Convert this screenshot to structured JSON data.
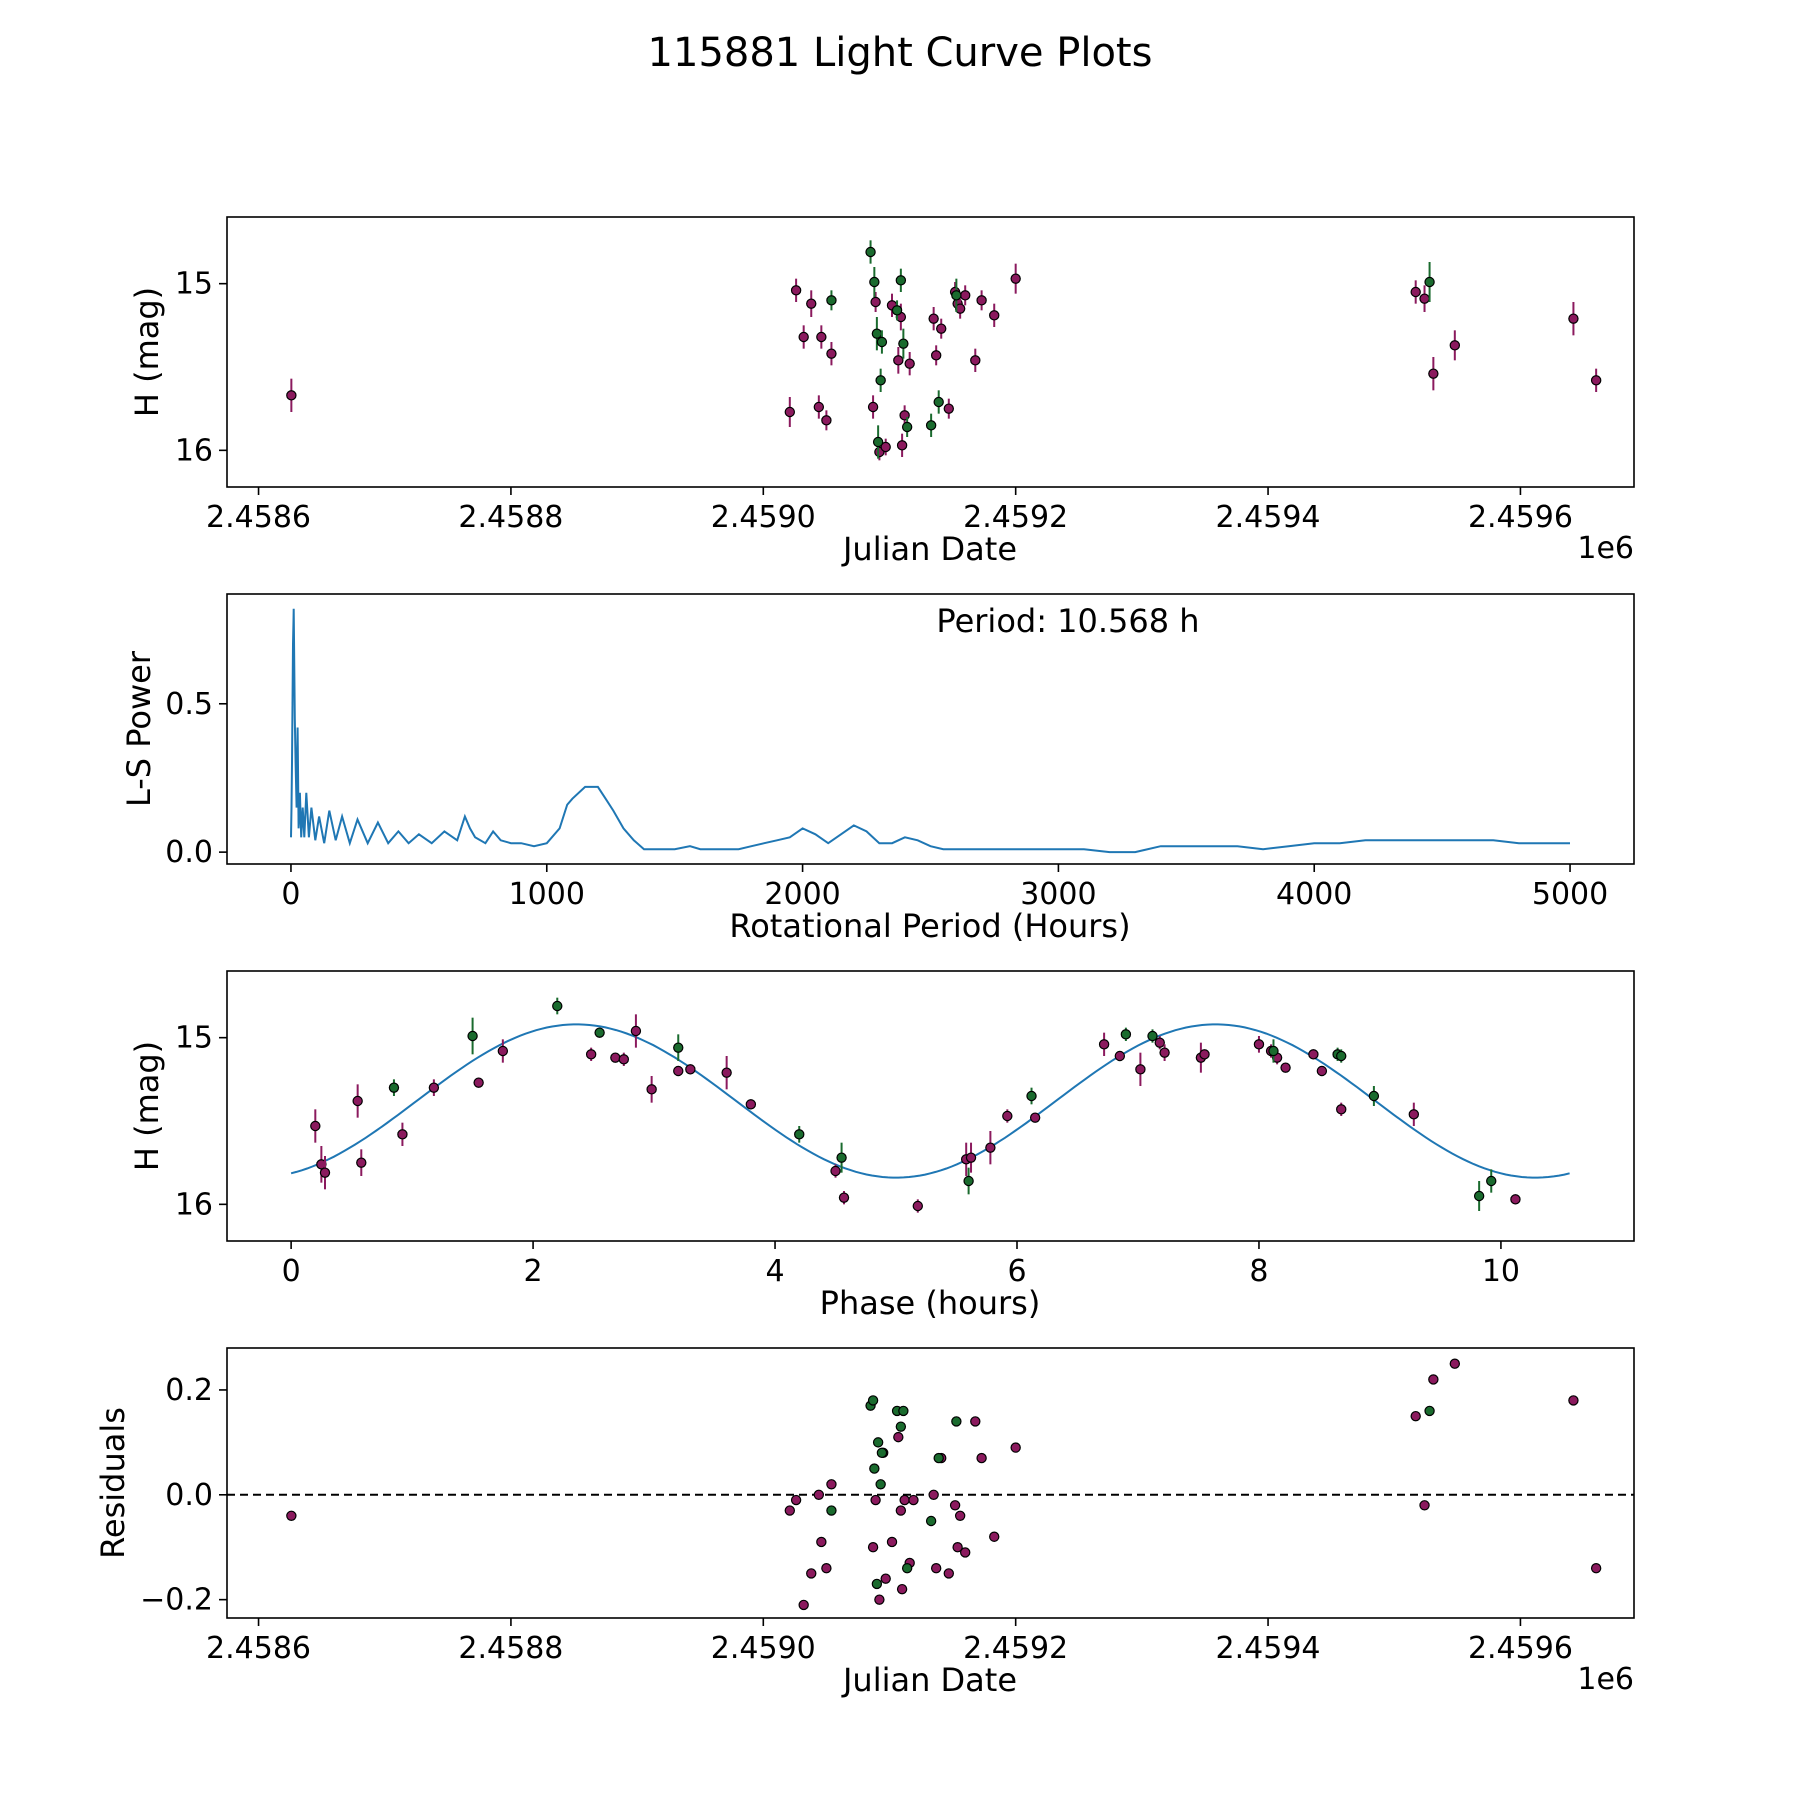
{
  "figure": {
    "title": "115881 Light Curve Plots"
  },
  "colors": {
    "series_a": "#8b1a5e",
    "series_b": "#1a6b2e",
    "marker_edge": "#000000",
    "curve": "#1f77b4",
    "zero_line": "#000000"
  },
  "chart_data": [
    {
      "name": "light-curve",
      "type": "scatter",
      "xlabel": "Julian Date",
      "ylabel": "H (mag)",
      "offset_label": "1e6",
      "xlim": [
        2458575,
        2459690
      ],
      "ylim": [
        14.6,
        16.22
      ],
      "inverted_y": true,
      "xticks": [
        2458600,
        2458800,
        2459000,
        2459200,
        2459400,
        2459600
      ],
      "xtick_labels": [
        "2.4586",
        "2.4588",
        "2.4590",
        "2.4592",
        "2.4594",
        "2.4596"
      ],
      "yticks": [
        15,
        16
      ],
      "ytick_labels": [
        "15",
        "16"
      ],
      "series": [
        {
          "name": "band-a",
          "color_key": "series_a",
          "x": [
            2458626,
            2459021,
            2459026,
            2459032,
            2459038,
            2459044,
            2459046,
            2459050,
            2459054,
            2459087,
            2459089,
            2459092,
            2459097,
            2459102,
            2459107,
            2459109,
            2459110,
            2459112,
            2459116,
            2459135,
            2459137,
            2459141,
            2459147,
            2459152,
            2459154,
            2459156,
            2459160,
            2459168,
            2459173,
            2459183,
            2459200,
            2459517,
            2459524,
            2459531,
            2459548,
            2459642,
            2459660
          ],
          "y": [
            15.67,
            15.77,
            15.04,
            15.32,
            15.12,
            15.74,
            15.32,
            15.82,
            15.42,
            15.74,
            15.11,
            16.01,
            15.98,
            15.13,
            15.46,
            15.2,
            15.97,
            15.79,
            15.48,
            15.21,
            15.43,
            15.27,
            15.75,
            15.05,
            15.12,
            15.15,
            15.07,
            15.46,
            15.1,
            15.19,
            14.97,
            15.05,
            15.09,
            15.54,
            15.37,
            15.21,
            15.58
          ],
          "err": [
            0.2,
            0.18,
            0.14,
            0.14,
            0.16,
            0.14,
            0.14,
            0.12,
            0.14,
            0.14,
            0.12,
            0.1,
            0.1,
            0.14,
            0.16,
            0.16,
            0.14,
            0.12,
            0.14,
            0.14,
            0.12,
            0.12,
            0.12,
            0.12,
            0.1,
            0.12,
            0.12,
            0.14,
            0.12,
            0.14,
            0.18,
            0.14,
            0.16,
            0.2,
            0.18,
            0.2,
            0.14
          ]
        },
        {
          "name": "band-b",
          "color_key": "series_b",
          "x": [
            2459054,
            2459085,
            2459088,
            2459090,
            2459091,
            2459093,
            2459094,
            2459106,
            2459109,
            2459111,
            2459114,
            2459133,
            2459139,
            2459153,
            2459528
          ],
          "y": [
            15.1,
            14.81,
            14.99,
            15.3,
            15.95,
            15.58,
            15.35,
            15.16,
            14.98,
            15.36,
            15.86,
            15.85,
            15.71,
            15.07,
            14.99
          ],
          "err": [
            0.12,
            0.14,
            0.18,
            0.2,
            0.2,
            0.14,
            0.14,
            0.12,
            0.14,
            0.18,
            0.12,
            0.14,
            0.14,
            0.2,
            0.24
          ]
        }
      ]
    },
    {
      "name": "periodogram",
      "type": "line",
      "xlabel": "Rotational Period (Hours)",
      "ylabel": "L-S Power",
      "annotation": "Period: 10.568 h",
      "xlim": [
        -250,
        5250
      ],
      "ylim": [
        -0.04,
        0.87
      ],
      "xticks": [
        0,
        1000,
        2000,
        3000,
        4000,
        5000
      ],
      "xtick_labels": [
        "0",
        "1000",
        "2000",
        "3000",
        "4000",
        "5000"
      ],
      "yticks": [
        0.0,
        0.5
      ],
      "ytick_labels": [
        "0.0",
        "0.5"
      ],
      "peak_period": 10.568,
      "x": [
        0,
        2,
        4,
        6,
        8,
        10,
        10.568,
        12,
        15,
        18,
        22,
        26,
        30,
        35,
        40,
        46,
        52,
        60,
        70,
        80,
        95,
        110,
        130,
        150,
        175,
        200,
        230,
        260,
        300,
        340,
        380,
        420,
        460,
        500,
        550,
        600,
        650,
        680,
        700,
        720,
        760,
        790,
        820,
        860,
        900,
        950,
        1000,
        1050,
        1080,
        1100,
        1150,
        1200,
        1230,
        1260,
        1300,
        1340,
        1380,
        1430,
        1500,
        1560,
        1600,
        1680,
        1750,
        1800,
        1850,
        1900,
        1950,
        2000,
        2050,
        2100,
        2150,
        2200,
        2250,
        2300,
        2350,
        2400,
        2450,
        2500,
        2550,
        2600,
        2700,
        2800,
        2900,
        3000,
        3100,
        3200,
        3300,
        3400,
        3500,
        3600,
        3700,
        3800,
        3900,
        4000,
        4100,
        4200,
        4300,
        4400,
        4500,
        4600,
        4700,
        4800,
        4900,
        5000
      ],
      "y": [
        0.05,
        0.15,
        0.3,
        0.5,
        0.7,
        0.78,
        0.82,
        0.72,
        0.45,
        0.3,
        0.15,
        0.42,
        0.08,
        0.2,
        0.05,
        0.15,
        0.05,
        0.2,
        0.05,
        0.15,
        0.04,
        0.12,
        0.03,
        0.14,
        0.04,
        0.12,
        0.03,
        0.11,
        0.03,
        0.1,
        0.03,
        0.07,
        0.03,
        0.06,
        0.03,
        0.07,
        0.04,
        0.12,
        0.08,
        0.05,
        0.03,
        0.07,
        0.04,
        0.03,
        0.03,
        0.02,
        0.03,
        0.08,
        0.16,
        0.18,
        0.22,
        0.22,
        0.18,
        0.14,
        0.08,
        0.04,
        0.01,
        0.01,
        0.01,
        0.02,
        0.01,
        0.01,
        0.01,
        0.02,
        0.03,
        0.04,
        0.05,
        0.08,
        0.06,
        0.03,
        0.06,
        0.09,
        0.07,
        0.03,
        0.03,
        0.05,
        0.04,
        0.02,
        0.01,
        0.01,
        0.01,
        0.01,
        0.01,
        0.01,
        0.01,
        0.0,
        0.0,
        0.02,
        0.02,
        0.02,
        0.02,
        0.01,
        0.02,
        0.03,
        0.03,
        0.04,
        0.04,
        0.04,
        0.04,
        0.04,
        0.04,
        0.03,
        0.03,
        0.03
      ]
    },
    {
      "name": "phase-folded",
      "type": "scatter",
      "xlabel": "Phase (hours)",
      "ylabel": "H (mag)",
      "xlim": [
        -0.53,
        11.1
      ],
      "ylim": [
        14.6,
        16.22
      ],
      "inverted_y": true,
      "xticks": [
        0,
        2,
        4,
        6,
        8,
        10
      ],
      "xtick_labels": [
        "0",
        "2",
        "4",
        "6",
        "8",
        "10"
      ],
      "yticks": [
        15,
        16
      ],
      "ytick_labels": [
        "15",
        "16"
      ],
      "fit_curve": {
        "amplitude": 0.46,
        "mean": 15.38,
        "phase_of_max_hours": 5.0,
        "period_hours": 5.284,
        "x_max": 10.568
      },
      "series": [
        {
          "name": "band-a",
          "color_key": "series_a",
          "x": [
            0.2,
            0.25,
            0.28,
            0.55,
            0.58,
            0.92,
            1.18,
            1.55,
            1.75,
            2.48,
            2.68,
            2.75,
            2.85,
            2.98,
            3.2,
            3.3,
            3.6,
            3.8,
            4.5,
            4.57,
            5.18,
            5.58,
            5.62,
            5.78,
            5.92,
            6.15,
            6.72,
            6.85,
            7.02,
            7.18,
            7.22,
            7.52,
            7.55,
            8.0,
            8.1,
            8.15,
            8.22,
            8.45,
            8.52,
            8.68,
            9.28,
            10.12
          ],
          "y": [
            15.53,
            15.76,
            15.81,
            15.38,
            15.75,
            15.58,
            15.3,
            15.27,
            15.08,
            15.1,
            15.12,
            15.13,
            14.96,
            15.31,
            15.2,
            15.19,
            15.21,
            15.4,
            15.8,
            15.96,
            16.01,
            15.73,
            15.72,
            15.66,
            15.47,
            15.48,
            15.04,
            15.11,
            15.19,
            15.03,
            15.09,
            15.12,
            15.1,
            15.04,
            15.08,
            15.12,
            15.18,
            15.1,
            15.2,
            15.43,
            15.46,
            15.97
          ],
          "err": [
            0.2,
            0.22,
            0.2,
            0.2,
            0.16,
            0.14,
            0.1,
            0.06,
            0.14,
            0.08,
            0.04,
            0.08,
            0.2,
            0.16,
            0.06,
            0.06,
            0.2,
            0.06,
            0.08,
            0.08,
            0.08,
            0.2,
            0.18,
            0.2,
            0.08,
            0.04,
            0.14,
            0.06,
            0.2,
            0.08,
            0.1,
            0.18,
            0.04,
            0.1,
            0.08,
            0.08,
            0.04,
            0.06,
            0.06,
            0.08,
            0.14,
            0.06
          ]
        },
        {
          "name": "band-b",
          "color_key": "series_b",
          "x": [
            0.85,
            1.5,
            2.2,
            2.55,
            3.2,
            4.2,
            4.55,
            5.6,
            6.12,
            6.9,
            7.12,
            8.12,
            8.65,
            8.68,
            8.95,
            9.82,
            9.92
          ],
          "y": [
            15.3,
            14.99,
            14.81,
            14.97,
            15.06,
            15.58,
            15.72,
            15.86,
            15.35,
            14.98,
            14.99,
            15.08,
            15.1,
            15.11,
            15.35,
            15.95,
            15.86
          ],
          "err": [
            0.1,
            0.22,
            0.1,
            0.06,
            0.16,
            0.1,
            0.18,
            0.16,
            0.1,
            0.08,
            0.08,
            0.14,
            0.08,
            0.08,
            0.12,
            0.18,
            0.14
          ]
        }
      ]
    },
    {
      "name": "residuals",
      "type": "scatter",
      "xlabel": "Julian Date",
      "ylabel": "Residuals",
      "offset_label": "1e6",
      "xlim": [
        2458575,
        2459690
      ],
      "ylim": [
        -0.235,
        0.28
      ],
      "xticks": [
        2458600,
        2458800,
        2459000,
        2459200,
        2459400,
        2459600
      ],
      "xtick_labels": [
        "2.4586",
        "2.4588",
        "2.4590",
        "2.4592",
        "2.4594",
        "2.4596"
      ],
      "yticks": [
        -0.2,
        0.0,
        0.2
      ],
      "ytick_labels": [
        "−0.2",
        "0.0",
        "0.2"
      ],
      "zero_line": 0.0,
      "series": [
        {
          "name": "band-a",
          "color_key": "series_a",
          "x": [
            2458626,
            2459021,
            2459026,
            2459032,
            2459038,
            2459044,
            2459046,
            2459050,
            2459054,
            2459087,
            2459089,
            2459092,
            2459097,
            2459102,
            2459107,
            2459109,
            2459110,
            2459112,
            2459116,
            2459135,
            2459137,
            2459141,
            2459147,
            2459152,
            2459154,
            2459156,
            2459160,
            2459168,
            2459173,
            2459183,
            2459200,
            2459517,
            2459524,
            2459531,
            2459548,
            2459642,
            2459660,
            2459119,
            2459095
          ],
          "y": [
            -0.04,
            -0.03,
            -0.01,
            -0.21,
            -0.15,
            0.0,
            -0.09,
            -0.14,
            0.02,
            -0.1,
            -0.01,
            -0.2,
            -0.16,
            -0.09,
            0.11,
            -0.03,
            -0.18,
            -0.01,
            -0.13,
            0.0,
            -0.14,
            0.07,
            -0.15,
            -0.02,
            -0.1,
            -0.04,
            -0.11,
            0.14,
            0.07,
            -0.08,
            0.09,
            0.15,
            -0.02,
            0.22,
            0.25,
            0.18,
            -0.14,
            -0.01,
            0.08
          ]
        },
        {
          "name": "band-b",
          "color_key": "series_b",
          "x": [
            2459054,
            2459085,
            2459088,
            2459090,
            2459091,
            2459093,
            2459094,
            2459106,
            2459109,
            2459111,
            2459114,
            2459133,
            2459139,
            2459153,
            2459528,
            2459087
          ],
          "y": [
            -0.03,
            0.17,
            0.05,
            -0.17,
            0.1,
            0.02,
            0.08,
            0.16,
            0.13,
            0.16,
            -0.14,
            -0.05,
            0.07,
            0.14,
            0.16,
            0.18
          ]
        }
      ]
    }
  ]
}
